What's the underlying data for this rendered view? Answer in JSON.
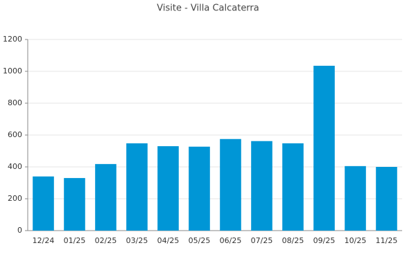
{
  "chart_data": {
    "type": "bar",
    "title": "Visite - Villa Calcaterra",
    "categories": [
      "12/24",
      "01/25",
      "02/25",
      "03/25",
      "04/25",
      "05/25",
      "06/25",
      "07/25",
      "08/25",
      "09/25",
      "10/25",
      "11/25"
    ],
    "values": [
      340,
      330,
      418,
      548,
      530,
      527,
      575,
      562,
      548,
      1035,
      405,
      400
    ],
    "color": "#0096d6",
    "ylim": [
      0,
      1200
    ],
    "yticks": [
      0,
      200,
      400,
      600,
      800,
      1000,
      1200
    ],
    "grid": true
  }
}
